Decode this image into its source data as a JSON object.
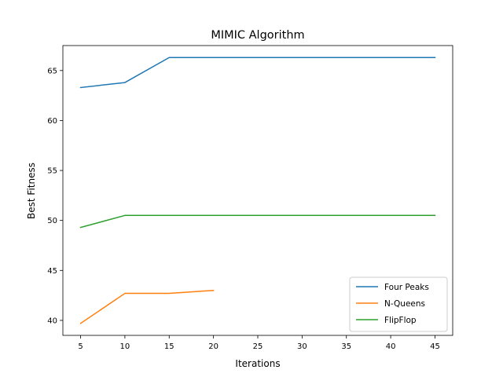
{
  "chart_data": {
    "type": "line",
    "title": "MIMIC Algorithm",
    "xlabel": "Iterations",
    "ylabel": "Best Fitness",
    "xlim": [
      3,
      47
    ],
    "ylim": [
      38.5,
      67.5
    ],
    "xticks": [
      5,
      10,
      15,
      20,
      25,
      30,
      35,
      40,
      45
    ],
    "yticks": [
      40,
      45,
      50,
      55,
      60,
      65
    ],
    "grid": false,
    "legend_position": "lower-right",
    "series": [
      {
        "name": "Four Peaks",
        "color": "#1f77b4",
        "x": [
          5,
          10,
          15,
          20,
          25,
          30,
          35,
          40,
          45
        ],
        "y": [
          63.3,
          63.8,
          66.3,
          66.3,
          66.3,
          66.3,
          66.3,
          66.3,
          66.3
        ]
      },
      {
        "name": "N-Queens",
        "color": "#ff7f0e",
        "x": [
          5,
          10,
          15,
          20
        ],
        "y": [
          39.7,
          42.7,
          42.7,
          43.0
        ]
      },
      {
        "name": "FlipFlop",
        "color": "#2ca02c",
        "x": [
          5,
          10,
          15,
          20,
          25,
          30,
          35,
          40,
          45
        ],
        "y": [
          49.3,
          50.5,
          50.5,
          50.5,
          50.5,
          50.5,
          50.5,
          50.5,
          50.5
        ]
      }
    ]
  }
}
